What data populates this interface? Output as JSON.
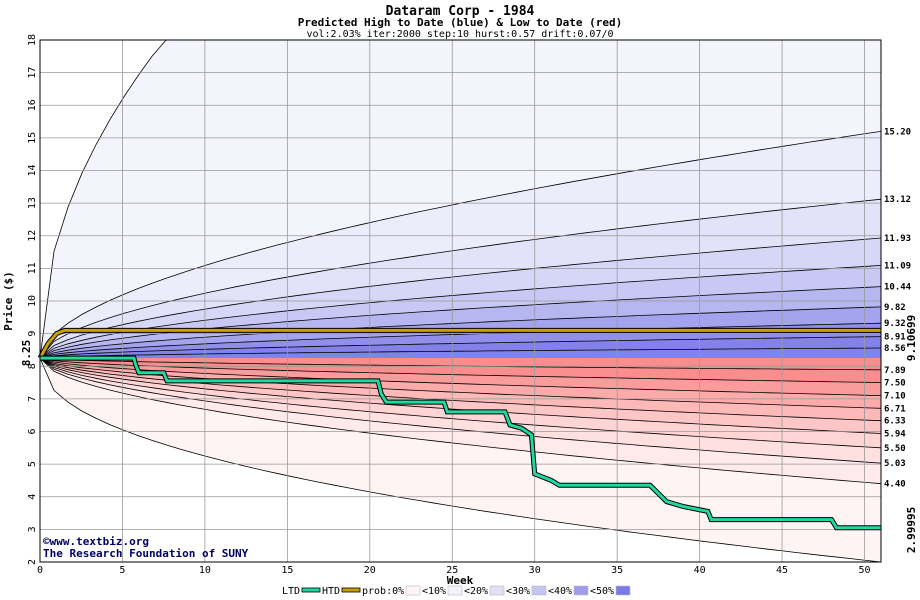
{
  "chart_data": {
    "type": "area",
    "title": "Dataram Corp - 1984",
    "subtitle": "Predicted High to Date (blue) &  Low to Date (red)",
    "params": "vol:2.03% iter:2000 step:10 hurst:0.57 drift:0.07/0",
    "xlabel": "Week",
    "ylabel": "Price ($)",
    "xlim": [
      0,
      51
    ],
    "ylim": [
      2,
      18
    ],
    "x_ticks": [
      0,
      5,
      10,
      15,
      20,
      25,
      30,
      35,
      40,
      45,
      50
    ],
    "y_ticks": [
      2,
      3,
      4,
      5,
      6,
      7,
      8,
      9,
      10,
      11,
      12,
      13,
      14,
      15,
      16,
      17,
      18
    ],
    "grid": true,
    "start_price": 8.25,
    "start_label": "8.25",
    "high_to_date_final_label": "9.10699",
    "low_to_date_final_label": "2.99995",
    "high_percentiles": [
      {
        "end": 8.56,
        "label": "8.56"
      },
      {
        "end": 8.91,
        "label": "8.91"
      },
      {
        "end": 9.32,
        "label": "9.32"
      },
      {
        "end": 9.82,
        "label": "9.82"
      },
      {
        "end": 10.44,
        "label": "10.44"
      },
      {
        "end": 11.09,
        "label": "11.09"
      },
      {
        "end": 11.93,
        "label": "11.93"
      },
      {
        "end": 13.12,
        "label": "13.12"
      },
      {
        "end": 15.2,
        "label": "15.20"
      }
    ],
    "low_percentiles": [
      {
        "end": 7.89,
        "label": "7.89"
      },
      {
        "end": 7.5,
        "label": "7.50"
      },
      {
        "end": 7.1,
        "label": "7.10"
      },
      {
        "end": 6.71,
        "label": "6.71"
      },
      {
        "end": 6.33,
        "label": "6.33"
      },
      {
        "end": 5.94,
        "label": "5.94"
      },
      {
        "end": 5.5,
        "label": "5.50"
      },
      {
        "end": 5.03,
        "label": "5.03"
      },
      {
        "end": 4.4,
        "label": "4.40"
      }
    ],
    "high_envelope_week1": 11.8,
    "low_envelope_final": 2.0,
    "htd_series": {
      "name": "HTD",
      "color": "#c8a000",
      "points": [
        [
          0,
          8.25
        ],
        [
          0.5,
          8.7
        ],
        [
          1,
          9.0
        ],
        [
          1.5,
          9.1
        ],
        [
          51,
          9.1
        ]
      ]
    },
    "ltd_series": {
      "name": "LTD",
      "color": "#20d8a0",
      "points": [
        [
          0,
          8.25
        ],
        [
          5.7,
          8.25
        ],
        [
          5.8,
          8.05
        ],
        [
          6,
          7.8
        ],
        [
          7.5,
          7.8
        ],
        [
          7.7,
          7.55
        ],
        [
          20.5,
          7.55
        ],
        [
          20.7,
          7.15
        ],
        [
          21,
          6.9
        ],
        [
          24.5,
          6.9
        ],
        [
          24.7,
          6.6
        ],
        [
          28.2,
          6.6
        ],
        [
          28.5,
          6.2
        ],
        [
          29.2,
          6.1
        ],
        [
          29.8,
          5.9
        ],
        [
          30,
          4.7
        ],
        [
          30.5,
          4.6
        ],
        [
          31,
          4.5
        ],
        [
          31.5,
          4.35
        ],
        [
          37,
          4.35
        ],
        [
          37.5,
          4.1
        ],
        [
          38,
          3.85
        ],
        [
          39,
          3.7
        ],
        [
          40.5,
          3.55
        ],
        [
          40.7,
          3.3
        ],
        [
          48,
          3.3
        ],
        [
          48.3,
          3.05
        ],
        [
          51,
          3.05
        ]
      ]
    },
    "legend": [
      {
        "label": "LTD",
        "kind": "line",
        "color": "#20d8a0"
      },
      {
        "label": "HTD",
        "kind": "line",
        "color": "#c8a000"
      },
      {
        "label": "prob:0%",
        "kind": "swatch",
        "color": "#fff4f4"
      },
      {
        "label": "<10%",
        "kind": "swatch",
        "color": "#f2f2fb"
      },
      {
        "label": "<20%",
        "kind": "swatch",
        "color": "#e0e0f6"
      },
      {
        "label": "<30%",
        "kind": "swatch",
        "color": "#c4c4f0"
      },
      {
        "label": "<40%",
        "kind": "swatch",
        "color": "#9e9eea"
      },
      {
        "label": "<50%",
        "kind": "swatch",
        "color": "#7a7ae4"
      }
    ],
    "colors": {
      "high_bands": [
        "#8282ea",
        "#9090ec",
        "#a4a4ee",
        "#b6b6f0",
        "#c8c8f4",
        "#d6d6f6",
        "#e2e2f8",
        "#ececfa",
        "#f4f4fd"
      ],
      "low_bands": [
        "#fa8e8e",
        "#fb9c9c",
        "#fcaaaa",
        "#fdb8b8",
        "#fdc6c6",
        "#fed4d4",
        "#fee0e0",
        "#feeaea",
        "#fff4f4"
      ],
      "grid": "#999999",
      "plot_bg": "#ffffff"
    }
  },
  "credits": {
    "site": "©www.textbiz.org",
    "org": "The Research Foundation of SUNY"
  }
}
